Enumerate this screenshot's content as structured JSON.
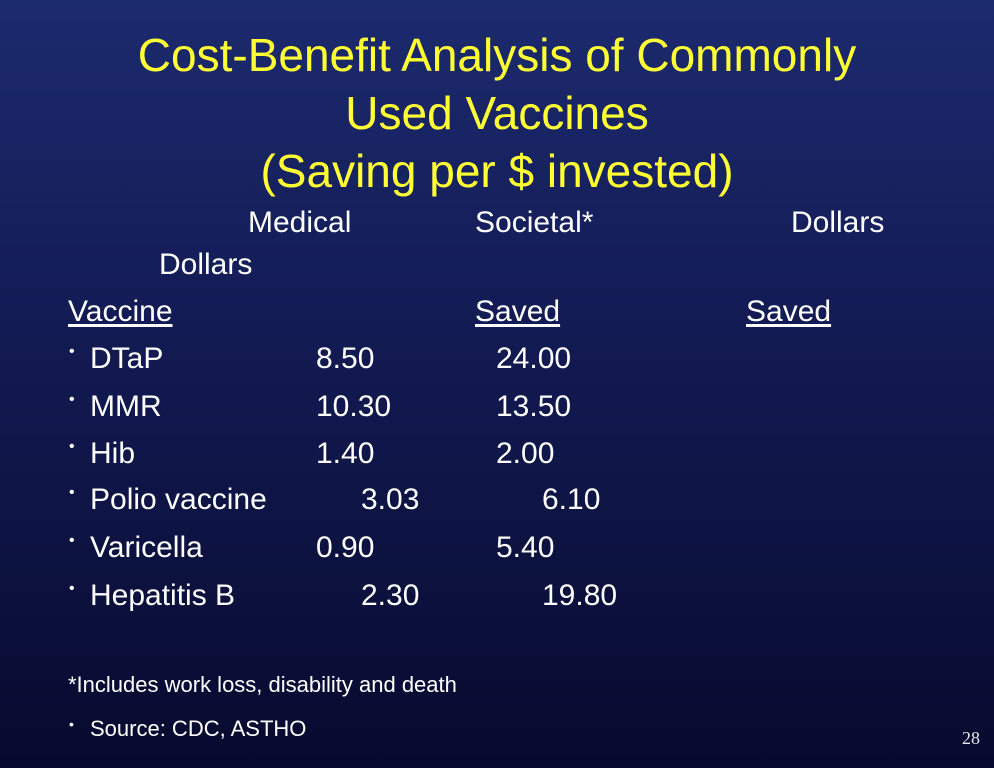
{
  "slide": {
    "title_lines": [
      "Cost-Benefit Analysis of Commonly",
      "Used Vaccines",
      "(Saving per $ invested)"
    ],
    "header": {
      "medical": "Medical",
      "societal": "Societal*",
      "dollars_1": "Dollars",
      "dollars_2": "Dollars",
      "vaccine": "Vaccine",
      "saved_1": "Saved",
      "saved_2": "Saved"
    },
    "rows": [
      {
        "name": "DTaP",
        "medical": "8.50",
        "societal": "24.00"
      },
      {
        "name": "MMR",
        "medical": "10.30",
        "societal": "13.50"
      },
      {
        "name": "Hib",
        "medical": "1.40",
        "societal": "2.00"
      },
      {
        "name": "Polio vaccine",
        "medical": "3.03",
        "societal": "6.10"
      },
      {
        "name": "Varicella",
        "medical": "0.90",
        "societal": "5.40"
      },
      {
        "name": "Hepatitis B",
        "medical": "2.30",
        "societal": "19.80"
      }
    ],
    "bullet_glyph": "•",
    "footnote": "*Includes work loss, disability and death",
    "source": "Source: CDC, ASTHO",
    "page_number": "28"
  }
}
